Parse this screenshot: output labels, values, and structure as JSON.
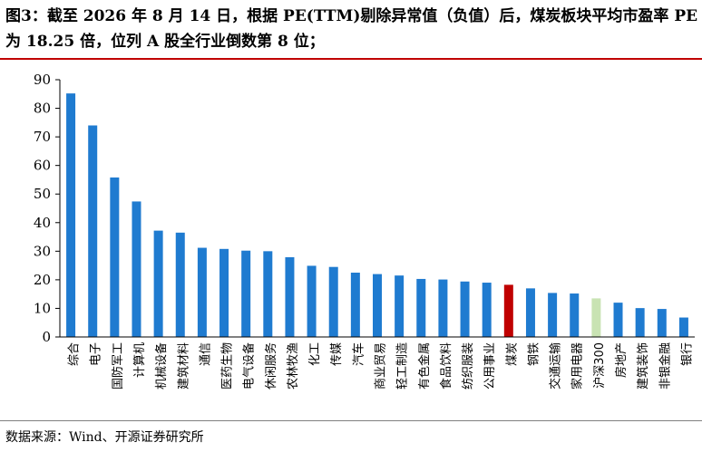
{
  "header": {
    "title": "图3：截至 2026 年 8 月 14 日，根据 PE(TTM)剔除异常值（负值）后，煤炭板块平均市盈率 PE 为 18.25 倍，位列 A 股全行业倒数第 8 位；"
  },
  "footer": {
    "source": "数据来源：Wind、开源证券研究所"
  },
  "colors": {
    "default": "#1f7bd0",
    "highlight": "#c00000",
    "benchmark": "#c9e3b3",
    "rule": "#c00000"
  },
  "chart_data": {
    "type": "bar",
    "categories": [
      "综合",
      "电子",
      "国防军工",
      "计算机",
      "机械设备",
      "建筑材料",
      "通信",
      "医药生物",
      "电气设备",
      "休闲服务",
      "农林牧渔",
      "化工",
      "传媒",
      "汽车",
      "商业贸易",
      "轻工制造",
      "有色金属",
      "食品饮料",
      "纺织服装",
      "公用事业",
      "煤炭",
      "钢铁",
      "交通运输",
      "家用电器",
      "沪深300",
      "房地产",
      "建筑装饰",
      "非银金融",
      "银行"
    ],
    "values": [
      85.2,
      74.0,
      55.8,
      47.4,
      37.2,
      36.5,
      31.2,
      30.8,
      30.2,
      30.0,
      27.9,
      24.9,
      24.5,
      22.5,
      22.0,
      21.5,
      20.3,
      20.1,
      19.4,
      19.0,
      18.25,
      17.0,
      15.4,
      15.2,
      13.5,
      12.0,
      10.1,
      9.8,
      6.8
    ],
    "highlight_category": "煤炭",
    "benchmark_category": "沪深300",
    "yticks": [
      0,
      10,
      20,
      30,
      40,
      50,
      60,
      70,
      80,
      90
    ],
    "ylim": [
      0,
      90
    ],
    "grid": false,
    "legend": "none"
  }
}
